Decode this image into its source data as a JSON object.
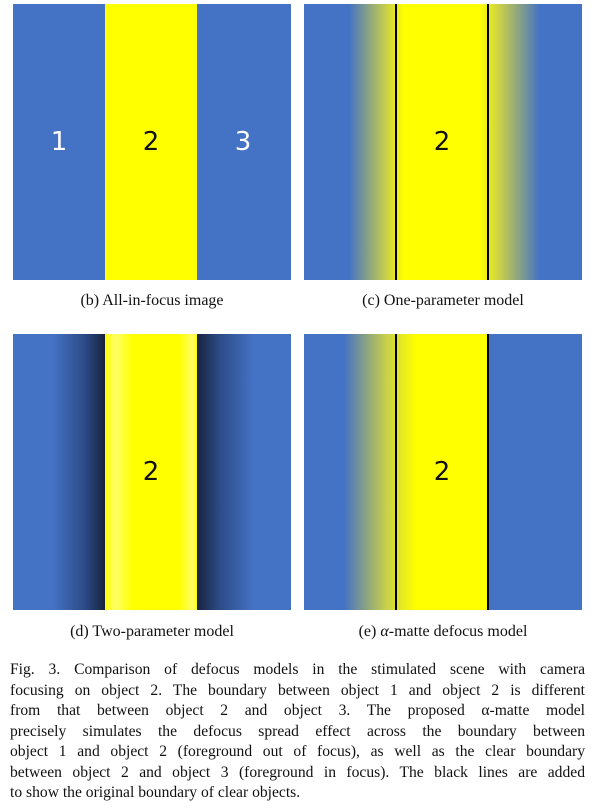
{
  "colors": {
    "blue": "#4472c4",
    "yellow": "#ffff00",
    "dark_blue": "#1c2a4a"
  },
  "panels": {
    "b": {
      "labels": [
        "1",
        "2",
        "3"
      ],
      "caption": "(b) All-in-focus image"
    },
    "c": {
      "label": "2",
      "caption": "(c) One-parameter model"
    },
    "d": {
      "label": "2",
      "caption": "(d) Two-parameter model"
    },
    "e": {
      "label": "2",
      "caption_prefix": "(e) ",
      "caption_symbol": "α",
      "caption_suffix": "-matte defocus model"
    }
  },
  "figure_caption": {
    "lines": [
      "Fig. 3.  Comparison of defocus models in the stimulated scene with camera",
      "focusing on object 2. The boundary between object 1 and object 2 is different",
      "from that between object 2 and object 3. The proposed α-matte model",
      "precisely simulates the defocus spread effect across the boundary between",
      "object 1 and object 2 (foreground out of focus), as well as the clear boundary",
      "between object 2 and object 3 (foreground in focus). The black lines are added",
      "to show the original boundary of clear objects."
    ]
  }
}
